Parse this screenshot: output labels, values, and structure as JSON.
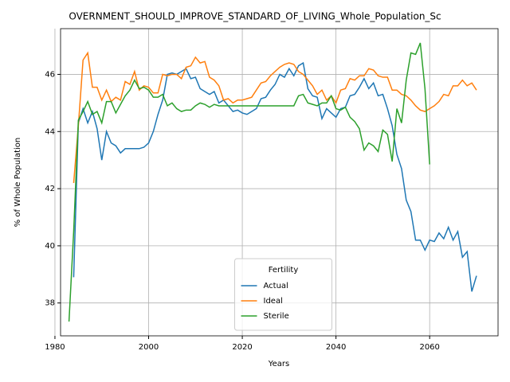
{
  "chart_data": {
    "type": "line",
    "title": "OVERNMENT_SHOULD_IMPROVE_STANDARD_OF_LIVING_Whole_Population_Sc",
    "xlabel": "Years",
    "ylabel": "% of Whole Population",
    "legend_title": "Fertility",
    "legend": "lower center",
    "grid": true,
    "xlim": [
      1981.2,
      2074.6
    ],
    "xticks": [
      1980,
      2000,
      2020,
      2040,
      2060
    ],
    "ylim": [
      36.85,
      47.6
    ],
    "yticks": [
      38,
      40,
      42,
      44,
      46
    ],
    "x": [
      1983,
      1984,
      1985,
      1986,
      1987,
      1988,
      1989,
      1990,
      1991,
      1992,
      1993,
      1994,
      1995,
      1996,
      1997,
      1998,
      1999,
      2000,
      2001,
      2002,
      2003,
      2004,
      2005,
      2006,
      2007,
      2008,
      2009,
      2010,
      2011,
      2012,
      2013,
      2014,
      2015,
      2016,
      2017,
      2018,
      2019,
      2020,
      2021,
      2022,
      2023,
      2024,
      2025,
      2026,
      2027,
      2028,
      2029,
      2030,
      2031,
      2032,
      2033,
      2034,
      2035,
      2036,
      2037,
      2038,
      2039,
      2040,
      2041,
      2042,
      2043,
      2044,
      2045,
      2046,
      2047,
      2048,
      2049,
      2050,
      2051,
      2052,
      2053,
      2054,
      2055,
      2056,
      2057,
      2058,
      2059,
      2060,
      2061,
      2062,
      2063,
      2064,
      2065,
      2066,
      2067,
      2068,
      2069,
      2070
    ],
    "series": [
      {
        "name": "Actual",
        "color": "#1f77b4",
        "values": [
          null,
          38.9,
          44.3,
          44.8,
          44.3,
          44.7,
          44.1,
          43.0,
          44.0,
          43.6,
          43.5,
          43.25,
          43.4,
          43.4,
          43.4,
          43.4,
          43.45,
          43.6,
          44.0,
          44.6,
          45.1,
          46.0,
          46.05,
          46.0,
          46.1,
          46.2,
          45.85,
          45.9,
          45.5,
          45.4,
          45.3,
          45.4,
          45.0,
          45.1,
          44.9,
          44.7,
          44.75,
          44.65,
          44.6,
          44.7,
          44.8,
          45.15,
          45.2,
          45.45,
          45.65,
          46.0,
          45.9,
          46.2,
          45.95,
          46.3,
          46.4,
          45.5,
          45.25,
          45.2,
          44.45,
          44.8,
          44.65,
          44.5,
          44.8,
          44.85,
          45.25,
          45.3,
          45.55,
          45.85,
          45.5,
          45.7,
          45.25,
          45.3,
          44.8,
          44.2,
          43.2,
          42.7,
          41.6,
          41.2,
          40.2,
          40.2,
          39.85,
          40.2,
          40.15,
          40.45,
          40.25,
          40.65,
          40.2,
          40.5,
          39.6,
          39.8,
          38.4,
          38.95
        ]
      },
      {
        "name": "Ideal",
        "color": "#ff7f0e",
        "values": [
          null,
          42.2,
          44.2,
          46.5,
          46.75,
          45.55,
          45.55,
          45.1,
          45.45,
          45.05,
          45.2,
          45.1,
          45.75,
          45.65,
          46.1,
          45.45,
          45.6,
          45.55,
          45.35,
          45.35,
          46.0,
          45.95,
          46.0,
          46.0,
          45.85,
          46.25,
          46.3,
          46.6,
          46.4,
          46.45,
          45.9,
          45.8,
          45.6,
          45.1,
          45.15,
          45.0,
          45.1,
          45.1,
          45.15,
          45.2,
          45.45,
          45.7,
          45.75,
          45.95,
          46.1,
          46.25,
          46.35,
          46.4,
          46.35,
          46.1,
          46.0,
          45.8,
          45.6,
          45.3,
          45.45,
          45.1,
          45.25,
          45.0,
          45.45,
          45.5,
          45.85,
          45.8,
          45.95,
          45.95,
          46.2,
          46.15,
          45.95,
          45.9,
          45.9,
          45.45,
          45.45,
          45.3,
          45.25,
          45.1,
          44.9,
          44.75,
          44.7,
          44.8,
          44.9,
          45.05,
          45.3,
          45.25,
          45.6,
          45.6,
          45.8,
          45.6,
          45.7,
          45.45
        ]
      },
      {
        "name": "Sterile",
        "color": "#2ca02c",
        "values": [
          37.35,
          40.5,
          44.4,
          44.7,
          45.05,
          44.6,
          44.7,
          44.3,
          45.05,
          45.05,
          44.65,
          44.95,
          45.25,
          45.45,
          45.8,
          45.5,
          45.55,
          45.45,
          45.2,
          45.2,
          45.3,
          44.9,
          45.0,
          44.8,
          44.7,
          44.75,
          44.75,
          44.9,
          45.0,
          44.95,
          44.85,
          44.95,
          44.9,
          44.9,
          44.9,
          44.9,
          44.9,
          44.9,
          44.9,
          44.9,
          44.9,
          44.9,
          44.9,
          44.9,
          44.9,
          44.9,
          44.9,
          44.9,
          44.9,
          45.25,
          45.3,
          45.0,
          44.95,
          44.9,
          45.0,
          45.0,
          45.25,
          44.8,
          44.75,
          44.85,
          44.5,
          44.35,
          44.1,
          43.35,
          43.6,
          43.5,
          43.3,
          44.05,
          43.9,
          42.95,
          44.8,
          44.3,
          45.8,
          46.75,
          46.7,
          47.1,
          45.5,
          42.85,
          null,
          null,
          null,
          null,
          null,
          null,
          null,
          null,
          null,
          null
        ]
      }
    ]
  }
}
